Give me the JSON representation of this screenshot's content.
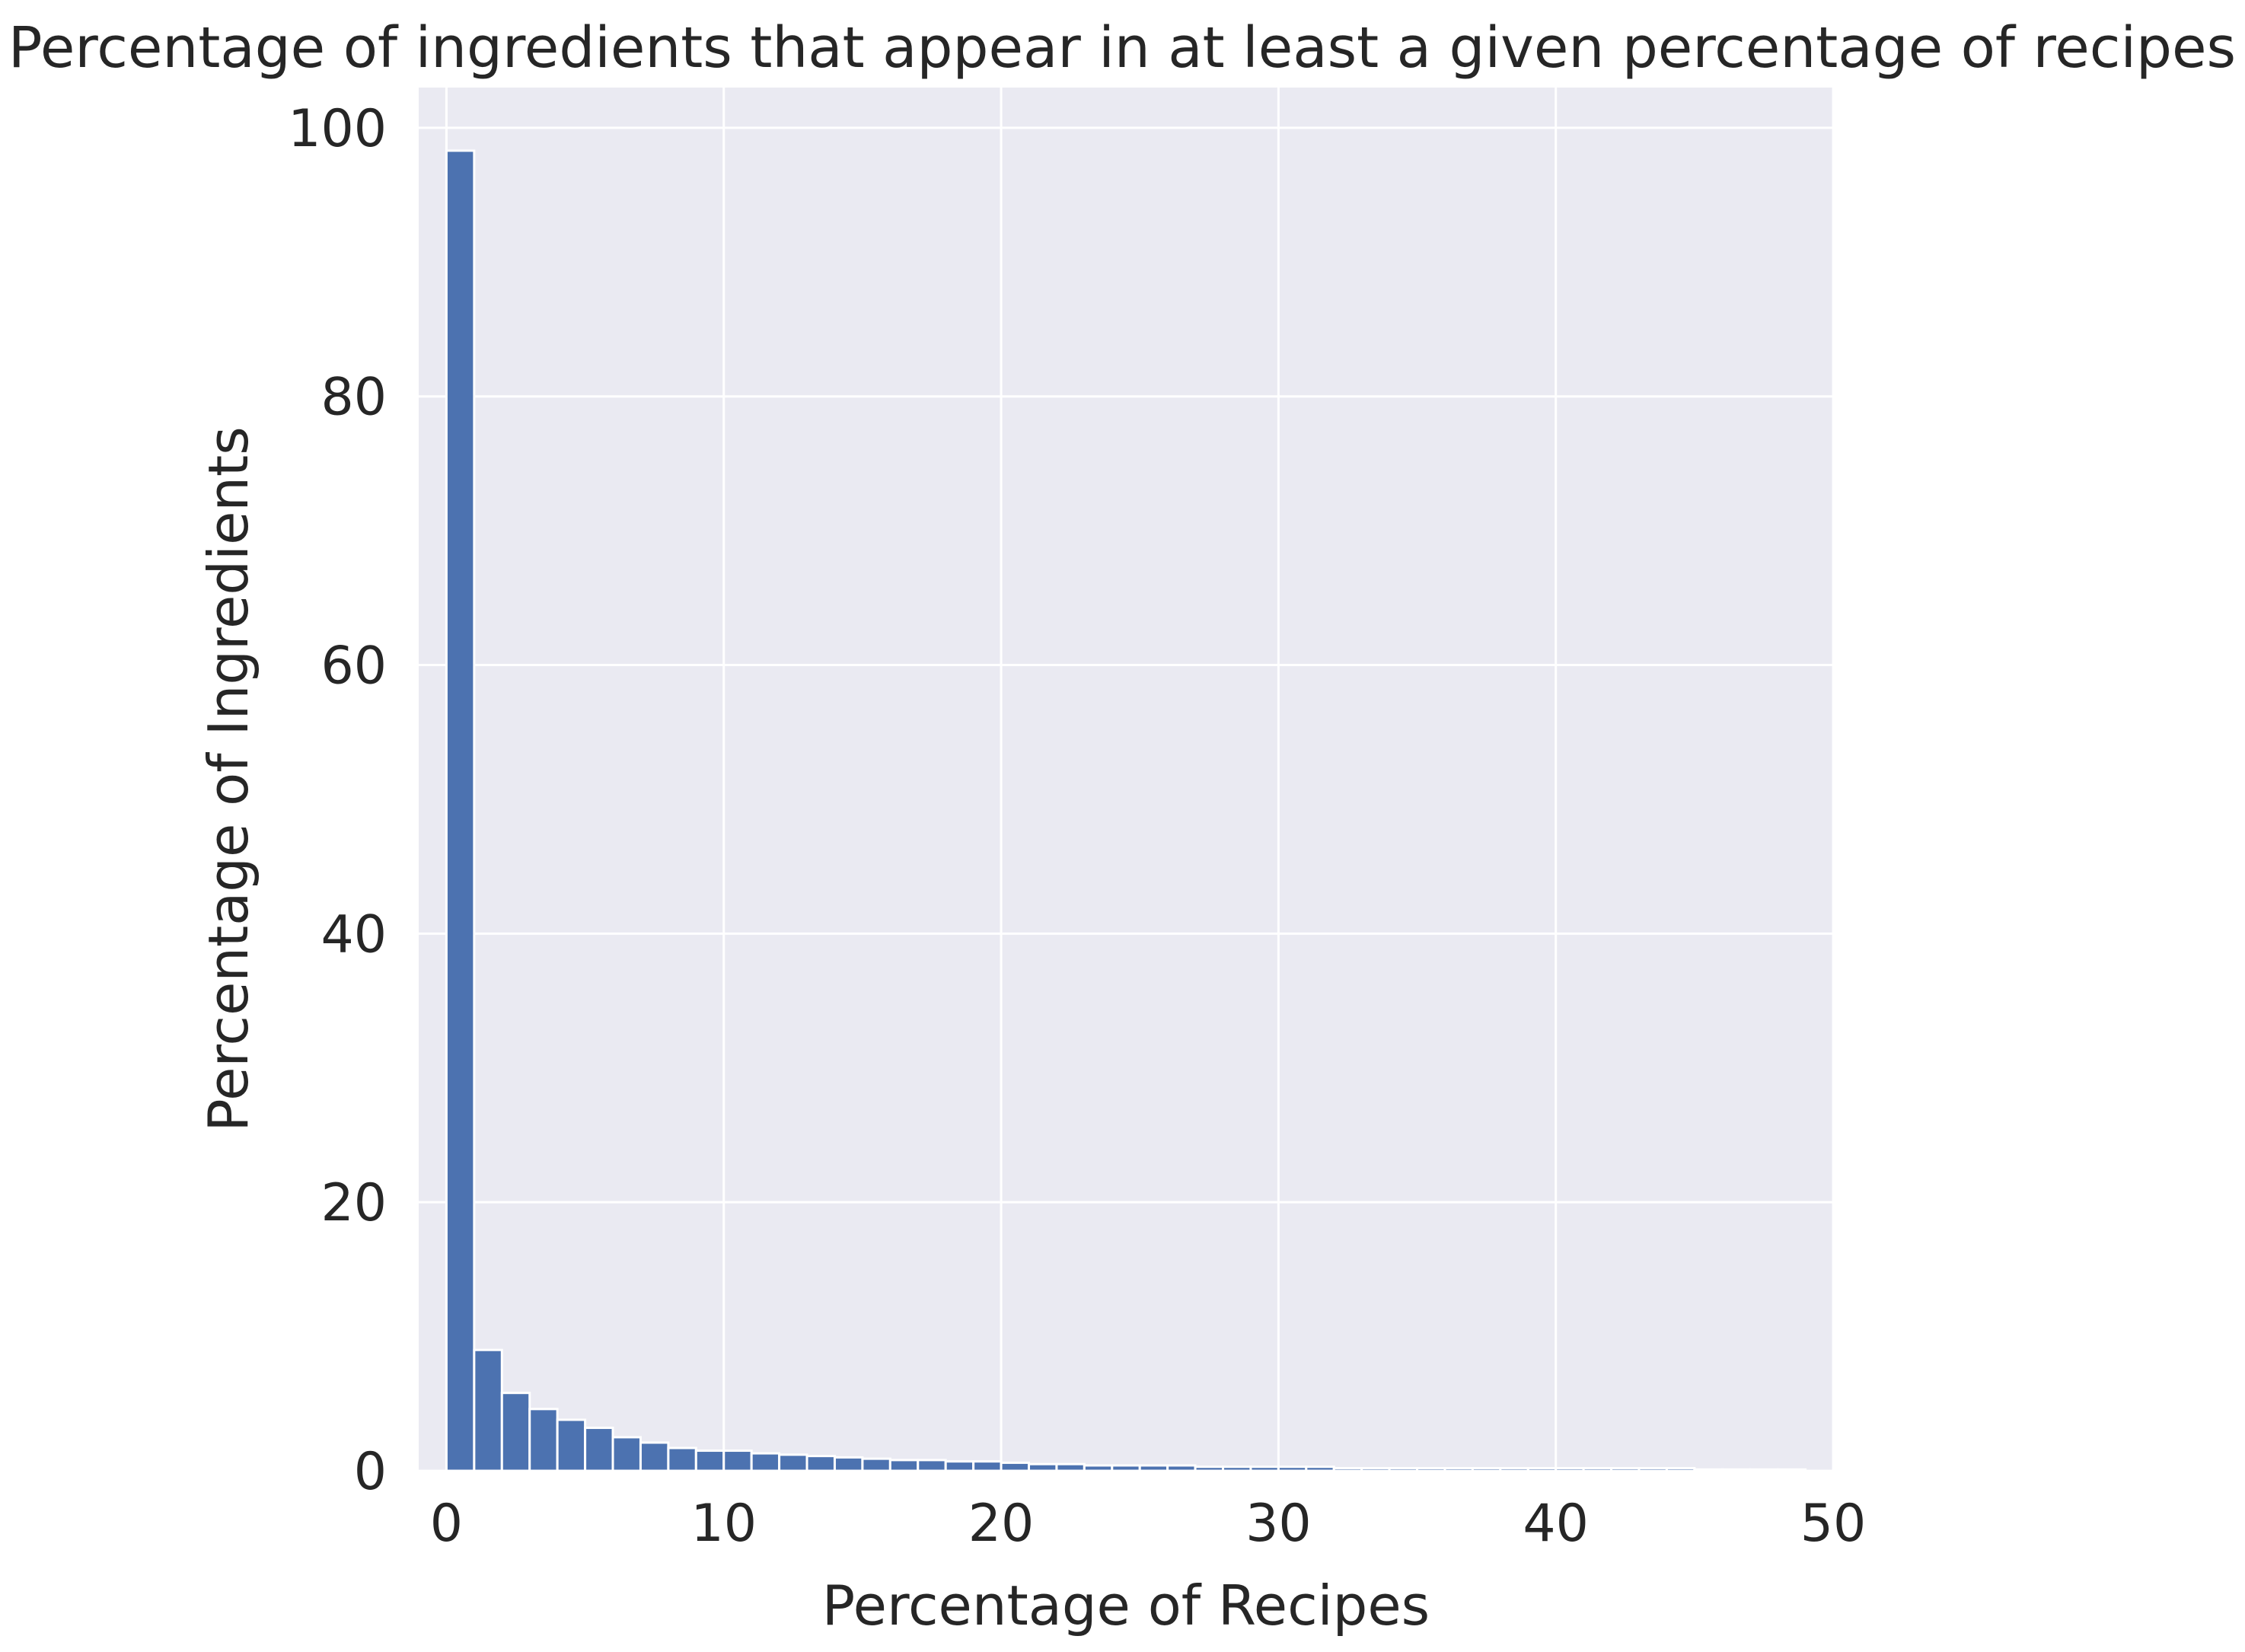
{
  "chart_data": {
    "type": "bar",
    "title": "Percentage of ingredients that appear in at least a given percentage of recipes",
    "xlabel": "Percentage of Recipes",
    "ylabel": "Percentage of Ingredients",
    "xlim": [
      -1,
      50
    ],
    "ylim": [
      0,
      103
    ],
    "xticks": [
      "0",
      "10",
      "20",
      "30",
      "40",
      "50"
    ],
    "yticks": [
      "0",
      "20",
      "40",
      "60",
      "80",
      "100"
    ],
    "grid": true,
    "legend": "none",
    "bar_color": "#4c72b0",
    "background_color": "#eaeaf2",
    "grid_color": "#ffffff",
    "bin_width": 1,
    "bins_start": [
      0,
      1,
      2,
      3,
      4,
      5,
      6,
      7,
      8,
      9,
      10,
      11,
      12,
      13,
      14,
      15,
      16,
      17,
      18,
      19,
      20,
      21,
      22,
      23,
      24,
      25,
      26,
      27,
      28,
      29,
      30,
      31,
      32,
      33,
      34,
      35,
      36,
      37,
      38,
      39,
      40,
      41,
      42,
      43,
      44,
      45,
      46,
      47,
      48
    ],
    "values": [
      98.3,
      9.0,
      5.8,
      4.6,
      3.8,
      3.2,
      2.5,
      2.1,
      1.7,
      1.5,
      1.5,
      1.3,
      1.2,
      1.1,
      1.0,
      0.9,
      0.8,
      0.8,
      0.7,
      0.7,
      0.6,
      0.5,
      0.5,
      0.4,
      0.4,
      0.4,
      0.4,
      0.3,
      0.3,
      0.3,
      0.3,
      0.3,
      0.2,
      0.2,
      0.2,
      0.2,
      0.2,
      0.2,
      0.2,
      0.2,
      0.2,
      0.2,
      0.2,
      0.2,
      0.2,
      0.1,
      0.1,
      0.1,
      0.1
    ]
  }
}
